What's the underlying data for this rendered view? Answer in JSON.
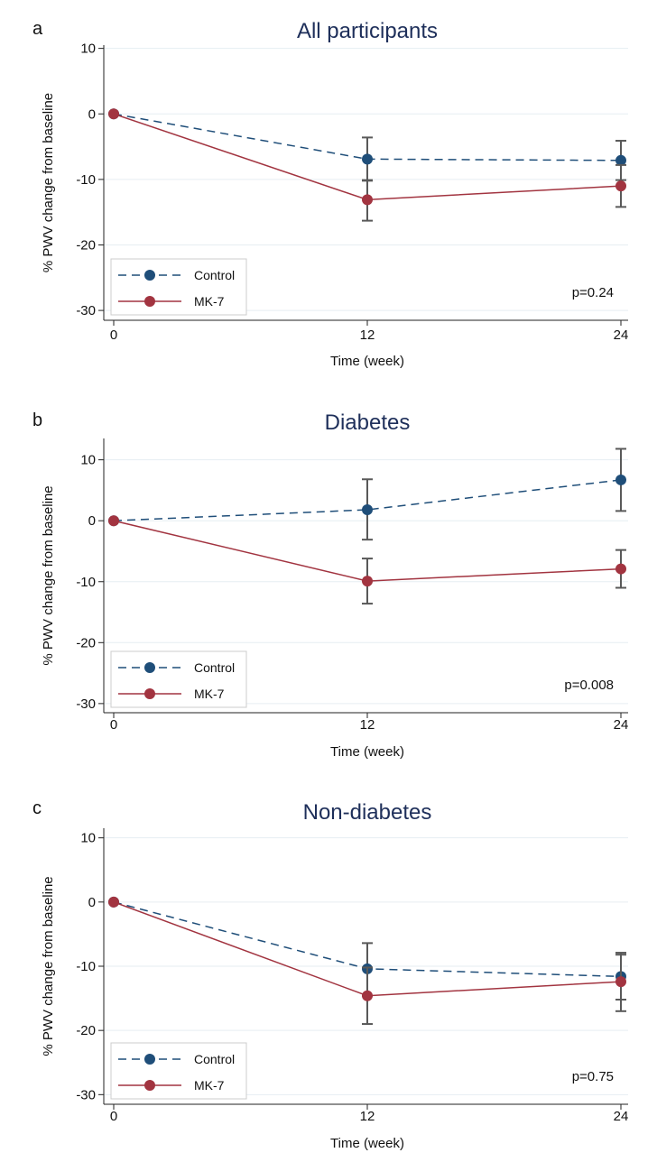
{
  "colors": {
    "control": "#1f4e79",
    "mk7": "#a23440",
    "errorbar": "#595959",
    "grid": "#e6eef2",
    "title": "#1e2f5a"
  },
  "chart_data": [
    {
      "type": "line",
      "panel": "a",
      "title": "All participants",
      "xlabel": "Time (week)",
      "ylabel": "% PWV change from baseline",
      "x": [
        0,
        12,
        24
      ],
      "xticks": [
        "0",
        "12",
        "24"
      ],
      "yticks": [
        10,
        0,
        -10,
        -20,
        -30
      ],
      "ylim": [
        -31.5,
        10.5
      ],
      "series": [
        {
          "name": "Control",
          "style": "dashed",
          "values": [
            0,
            -6.9,
            -7.1
          ],
          "err_low": [
            0,
            -10.2,
            -10.1
          ],
          "err_high": [
            0,
            -3.6,
            -4.1
          ]
        },
        {
          "name": "MK-7",
          "style": "solid",
          "values": [
            0,
            -13.1,
            -11.0
          ],
          "err_low": [
            0,
            -16.3,
            -14.2
          ],
          "err_high": [
            0,
            -10.1,
            -7.8
          ]
        }
      ],
      "annotation": "p=0.24",
      "legend": "bottom-left"
    },
    {
      "type": "line",
      "panel": "b",
      "title": "Diabetes",
      "xlabel": "Time (week)",
      "ylabel": "% PWV change from baseline",
      "x": [
        0,
        12,
        24
      ],
      "xticks": [
        "0",
        "12",
        "24"
      ],
      "yticks": [
        10,
        0,
        -10,
        -20,
        -30
      ],
      "ylim": [
        -31.5,
        13.5
      ],
      "series": [
        {
          "name": "Control",
          "style": "dashed",
          "values": [
            0,
            1.8,
            6.7
          ],
          "err_low": [
            0,
            -3.1,
            1.6
          ],
          "err_high": [
            0,
            6.8,
            11.8
          ]
        },
        {
          "name": "MK-7",
          "style": "solid",
          "values": [
            0,
            -9.9,
            -7.9
          ],
          "err_low": [
            0,
            -13.6,
            -11.0
          ],
          "err_high": [
            0,
            -6.2,
            -4.8
          ]
        }
      ],
      "annotation": "p=0.008",
      "legend": "bottom-left"
    },
    {
      "type": "line",
      "panel": "c",
      "title": "Non-diabetes",
      "xlabel": "Time (week)",
      "ylabel": "% PWV change from baseline",
      "x": [
        0,
        12,
        24
      ],
      "xticks": [
        "0",
        "12",
        "24"
      ],
      "yticks": [
        10,
        0,
        -10,
        -20,
        -30
      ],
      "ylim": [
        -31.5,
        11.5
      ],
      "series": [
        {
          "name": "Control",
          "style": "dashed",
          "values": [
            0,
            -10.4,
            -11.6
          ],
          "err_low": [
            0,
            -14.6,
            -15.2
          ],
          "err_high": [
            0,
            -6.4,
            -7.9
          ]
        },
        {
          "name": "MK-7",
          "style": "solid",
          "values": [
            0,
            -14.6,
            -12.4
          ],
          "err_low": [
            0,
            -19.0,
            -17.0
          ],
          "err_high": [
            0,
            -10.2,
            -8.2
          ]
        }
      ],
      "annotation": "p=0.75",
      "legend": "bottom-left"
    }
  ]
}
